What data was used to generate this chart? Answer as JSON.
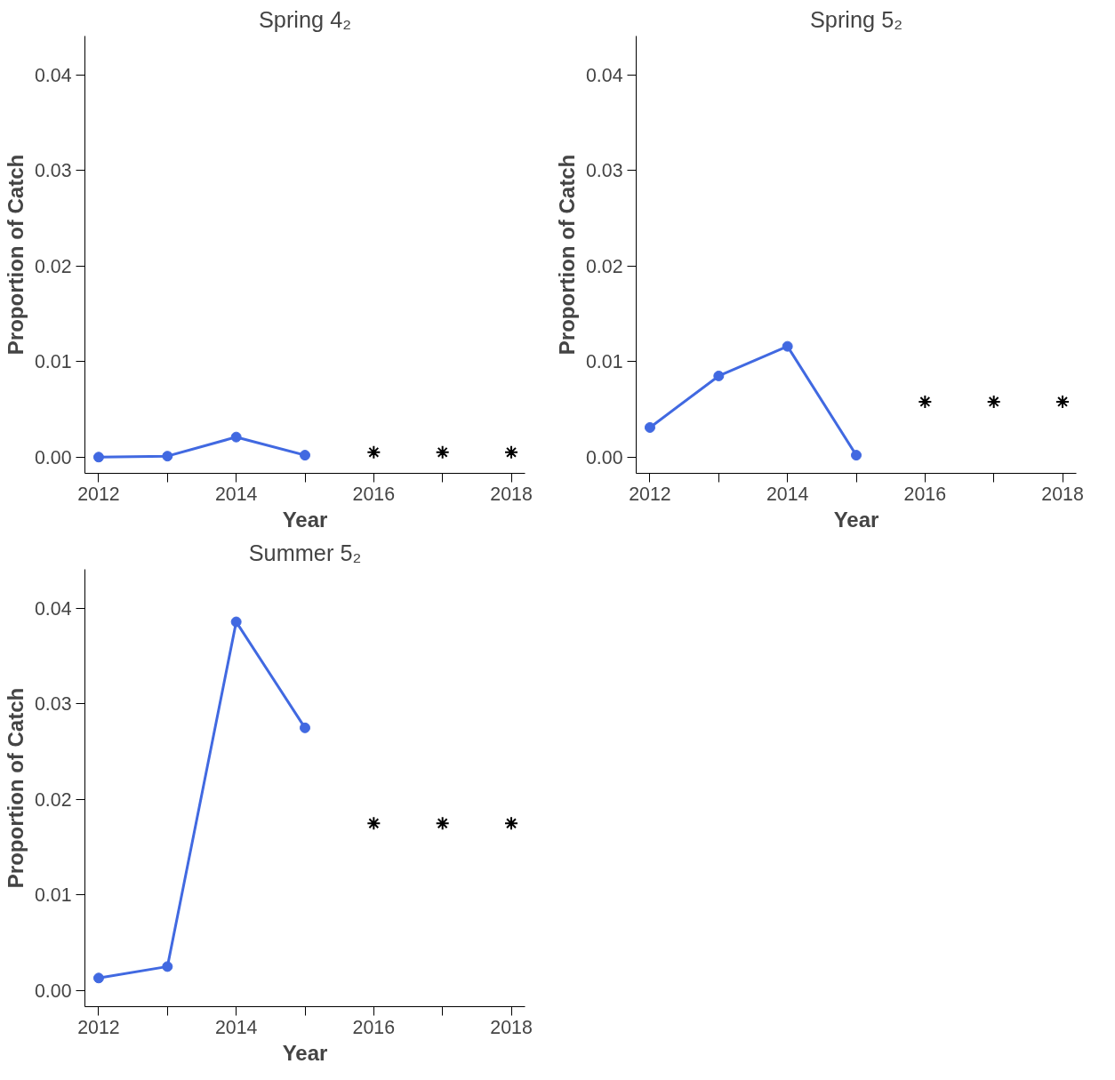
{
  "chart_data": [
    {
      "type": "line",
      "title": "Spring 4₂",
      "xlabel": "Year",
      "ylabel": "Proportion of Catch",
      "xlim": [
        2011.8,
        2018.2
      ],
      "ylim": [
        -0.0017,
        0.0441
      ],
      "xticks": [
        2012,
        {
          "value": 2013,
          "label": null
        },
        2014,
        {
          "value": 2015,
          "label": null
        },
        2016,
        {
          "value": 2017,
          "label": null
        },
        2018
      ],
      "yticks": [
        {
          "value": 0,
          "label": "0.00"
        },
        {
          "value": 0.01,
          "label": "0.01"
        },
        {
          "value": 0.02,
          "label": "0.02"
        },
        {
          "value": 0.03,
          "label": "0.03"
        },
        {
          "value": 0.04,
          "label": "0.04"
        }
      ],
      "grid": false,
      "series": [
        {
          "color": "#4169e1",
          "marker": "circle",
          "x": [
            2012,
            2013,
            2014,
            2015
          ],
          "values": [
            0.0,
            0.0001,
            0.0021,
            0.0002
          ]
        },
        {
          "type": "scatter",
          "color": "#000000",
          "marker": "cross",
          "x": [
            2016,
            2017,
            2018
          ],
          "values": [
            0.0005,
            0.0005,
            0.0005
          ]
        }
      ]
    },
    {
      "type": "line",
      "title": "Spring 5₂",
      "xlabel": "Year",
      "ylabel": "Proportion of Catch",
      "xlim": [
        2011.8,
        2018.2
      ],
      "ylim": [
        -0.0017,
        0.0441
      ],
      "xticks": [
        2012,
        {
          "value": 2013,
          "label": null
        },
        2014,
        {
          "value": 2015,
          "label": null
        },
        2016,
        {
          "value": 2017,
          "label": null
        },
        2018
      ],
      "yticks": [
        {
          "value": 0,
          "label": "0.00"
        },
        {
          "value": 0.01,
          "label": "0.01"
        },
        {
          "value": 0.02,
          "label": "0.02"
        },
        {
          "value": 0.03,
          "label": "0.03"
        },
        {
          "value": 0.04,
          "label": "0.04"
        }
      ],
      "grid": false,
      "series": [
        {
          "color": "#4169e1",
          "marker": "circle",
          "x": [
            2012,
            2013,
            2014,
            2015
          ],
          "values": [
            0.0031,
            0.0085,
            0.0116,
            0.0002
          ]
        },
        {
          "type": "scatter",
          "color": "#000000",
          "marker": "cross",
          "x": [
            2016,
            2017,
            2018
          ],
          "values": [
            0.0058,
            0.0058,
            0.0058
          ]
        }
      ]
    },
    {
      "type": "line",
      "title": "Summer 5₂",
      "xlabel": "Year",
      "ylabel": "Proportion of Catch",
      "xlim": [
        2011.8,
        2018.2
      ],
      "ylim": [
        -0.0017,
        0.0441
      ],
      "xticks": [
        2012,
        {
          "value": 2013,
          "label": null
        },
        2014,
        {
          "value": 2015,
          "label": null
        },
        2016,
        {
          "value": 2017,
          "label": null
        },
        2018
      ],
      "yticks": [
        {
          "value": 0,
          "label": "0.00"
        },
        {
          "value": 0.01,
          "label": "0.01"
        },
        {
          "value": 0.02,
          "label": "0.02"
        },
        {
          "value": 0.03,
          "label": "0.03"
        },
        {
          "value": 0.04,
          "label": "0.04"
        }
      ],
      "grid": false,
      "series": [
        {
          "color": "#4169e1",
          "marker": "circle",
          "x": [
            2012,
            2013,
            2014,
            2015
          ],
          "values": [
            0.0013,
            0.0025,
            0.0386,
            0.0275
          ]
        },
        {
          "type": "scatter",
          "color": "#000000",
          "marker": "cross",
          "x": [
            2016,
            2017,
            2018
          ],
          "values": [
            0.0175,
            0.0175,
            0.0175
          ]
        }
      ]
    }
  ]
}
